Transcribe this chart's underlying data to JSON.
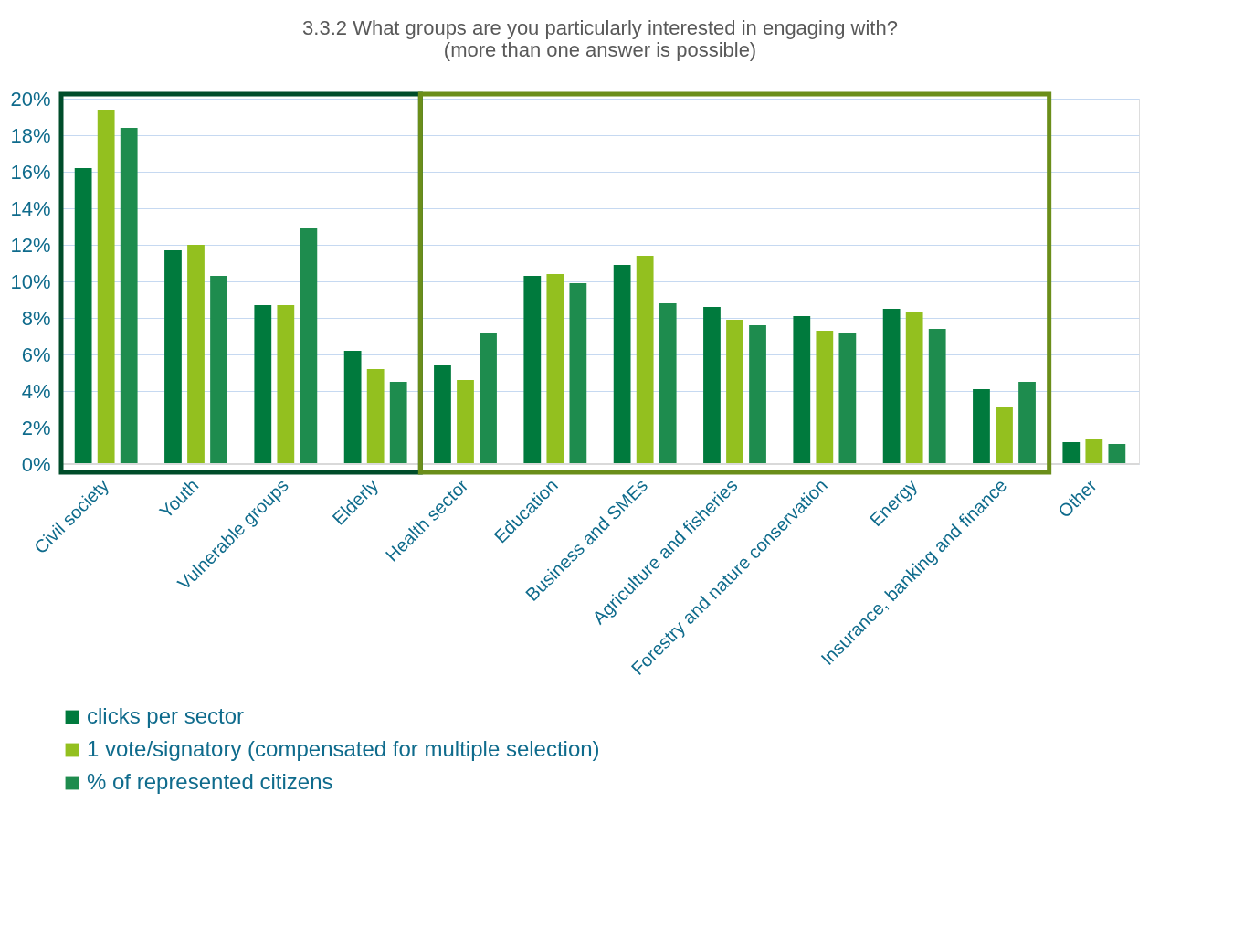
{
  "chart_data": {
    "type": "bar",
    "title": "3.3.2 What groups are you particularly interested in engaging with? (more than one answer is possible)",
    "categories": [
      "Civil society",
      "Youth",
      "Vulnerable groups",
      "Elderly",
      "Health sector",
      "Education",
      "Business and SMEs",
      "Agriculture and fisheries",
      "Forestry and nature conservation",
      "Energy",
      "Insurance, banking and finance",
      "Other"
    ],
    "series": [
      {
        "name": "clicks per sector",
        "color": "#007a3d",
        "values": [
          16.2,
          11.7,
          8.7,
          6.2,
          5.4,
          10.3,
          10.9,
          8.6,
          8.1,
          8.5,
          4.1,
          1.2
        ]
      },
      {
        "name": "1 vote/signatory (compensated for multiple selection)",
        "color": "#93c01f",
        "values": [
          19.4,
          12.0,
          8.7,
          5.2,
          4.6,
          10.4,
          11.4,
          7.9,
          7.3,
          8.3,
          3.1,
          1.4
        ]
      },
      {
        "name": "% of represented citizens",
        "color": "#1e8c4e",
        "values": [
          18.4,
          10.3,
          12.9,
          4.5,
          7.2,
          9.9,
          8.8,
          7.6,
          7.2,
          7.4,
          4.5,
          1.1
        ]
      }
    ],
    "ylim": [
      0,
      20
    ],
    "yticks": [
      {
        "value": 0,
        "label": "0%"
      },
      {
        "value": 2,
        "label": "2%"
      },
      {
        "value": 4,
        "label": "4%"
      },
      {
        "value": 6,
        "label": "6%"
      },
      {
        "value": 8,
        "label": "8%"
      },
      {
        "value": 10,
        "label": "10%"
      },
      {
        "value": 12,
        "label": "12%"
      },
      {
        "value": 14,
        "label": "14%"
      },
      {
        "value": 16,
        "label": "16%"
      },
      {
        "value": 18,
        "label": "18%"
      },
      {
        "value": 20,
        "label": "20%"
      }
    ],
    "grid": "y",
    "legend": "bottom"
  }
}
